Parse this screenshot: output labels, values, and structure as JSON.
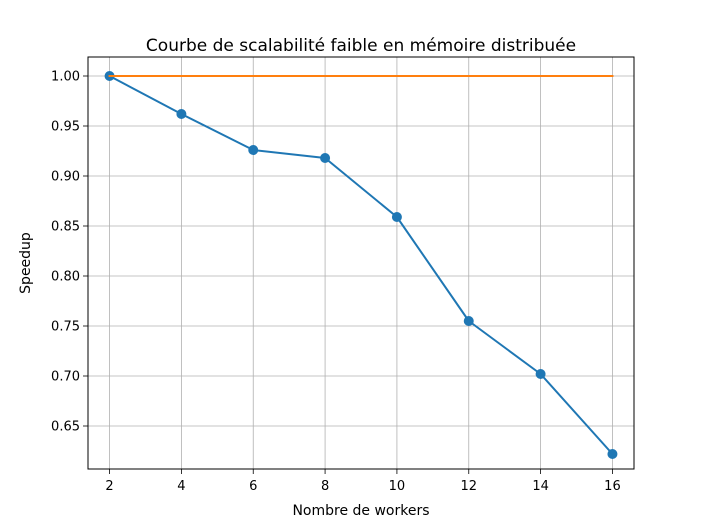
{
  "chart_data": {
    "type": "line",
    "title": "Courbe de scalabilité faible en mémoire distribuée",
    "xlabel": "Nombre de workers",
    "ylabel": "Speedup",
    "x": [
      2,
      4,
      6,
      8,
      10,
      12,
      14,
      16
    ],
    "xlim": [
      1.4,
      16.6
    ],
    "ylim": [
      0.607,
      1.019
    ],
    "xticks": [
      "2",
      "4",
      "6",
      "8",
      "10",
      "12",
      "14",
      "16"
    ],
    "xtick_values": [
      2,
      4,
      6,
      8,
      10,
      12,
      14,
      16
    ],
    "yticks": [
      "0.65",
      "0.70",
      "0.75",
      "0.80",
      "0.85",
      "0.90",
      "0.95",
      "1.00"
    ],
    "ytick_values": [
      0.65,
      0.7,
      0.75,
      0.8,
      0.85,
      0.9,
      0.95,
      1.0
    ],
    "grid": true,
    "series": [
      {
        "color": "#1f77b4",
        "marker": "circle",
        "x": [
          2,
          4,
          6,
          8,
          10,
          12,
          14,
          16
        ],
        "values": [
          1.0,
          0.962,
          0.926,
          0.918,
          0.859,
          0.755,
          0.702,
          0.622
        ]
      },
      {
        "color": "#ff7f0e",
        "marker": "none",
        "x": [
          2,
          4,
          6,
          8,
          10,
          12,
          14,
          16
        ],
        "values": [
          1.0,
          1.0,
          1.0,
          1.0,
          1.0,
          1.0,
          1.0,
          1.0
        ]
      }
    ]
  }
}
